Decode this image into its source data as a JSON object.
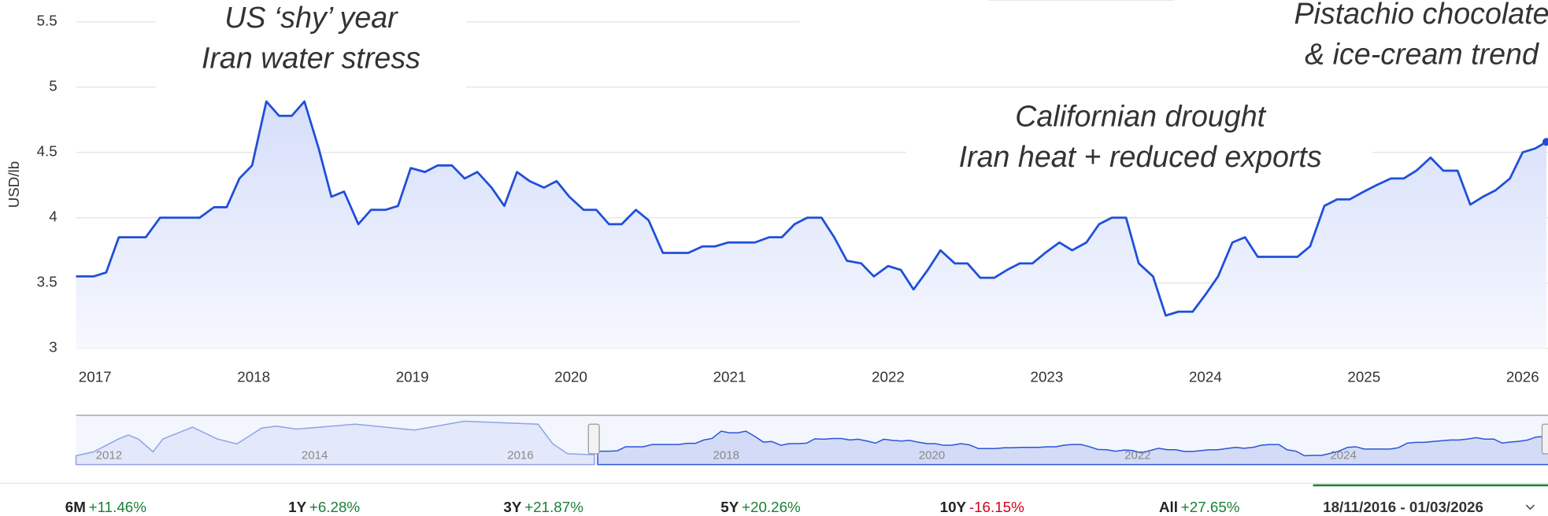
{
  "chart_data": {
    "type": "line",
    "y_label": "USD/lb",
    "color": "#1f4fd8",
    "x": [
      2016.88,
      2016.99,
      2017.07,
      2017.15,
      2017.32,
      2017.41,
      2017.66,
      2017.75,
      2017.83,
      2017.91,
      2017.99,
      2018.08,
      2018.16,
      2018.24,
      2018.32,
      2018.41,
      2018.49,
      2018.57,
      2018.66,
      2018.74,
      2018.83,
      2018.91,
      2018.99,
      2019.08,
      2019.16,
      2019.25,
      2019.33,
      2019.41,
      2019.5,
      2019.58,
      2019.66,
      2019.74,
      2019.83,
      2019.91,
      2019.99,
      2020.08,
      2020.16,
      2020.24,
      2020.32,
      2020.41,
      2020.49,
      2020.58,
      2020.74,
      2020.83,
      2020.91,
      2020.99,
      2021.16,
      2021.25,
      2021.33,
      2021.41,
      2021.49,
      2021.58,
      2021.66,
      2021.74,
      2021.83,
      2021.91,
      2022.0,
      2022.08,
      2022.16,
      2022.25,
      2022.33,
      2022.42,
      2022.5,
      2022.58,
      2022.67,
      2022.75,
      2022.83,
      2022.91,
      2022.99,
      2023.08,
      2023.16,
      2023.25,
      2023.33,
      2023.41,
      2023.5,
      2023.58,
      2023.67,
      2023.75,
      2023.83,
      2023.92,
      2024.0,
      2024.08,
      2024.17,
      2024.25,
      2024.33,
      2024.58,
      2024.66,
      2024.75,
      2024.83,
      2024.91,
      2025.0,
      2025.08,
      2025.17,
      2025.25,
      2025.33,
      2025.42,
      2025.5,
      2025.59,
      2025.67,
      2025.75,
      2025.83,
      2025.92,
      2026.0,
      2026.08,
      2026.15
    ],
    "values": [
      3.55,
      3.55,
      3.58,
      3.85,
      3.85,
      4.0,
      4.0,
      4.08,
      4.08,
      4.3,
      4.4,
      4.89,
      4.78,
      4.78,
      4.89,
      4.53,
      4.16,
      4.2,
      3.95,
      4.06,
      4.06,
      4.09,
      4.38,
      4.35,
      4.4,
      4.4,
      4.3,
      4.35,
      4.23,
      4.09,
      4.35,
      4.28,
      4.23,
      4.28,
      4.16,
      4.06,
      4.06,
      3.95,
      3.95,
      4.06,
      3.98,
      3.73,
      3.73,
      3.78,
      3.78,
      3.81,
      3.81,
      3.85,
      3.85,
      3.95,
      4.0,
      4.0,
      3.85,
      3.67,
      3.65,
      3.55,
      3.63,
      3.6,
      3.45,
      3.6,
      3.75,
      3.65,
      3.65,
      3.54,
      3.54,
      3.6,
      3.65,
      3.65,
      3.73,
      3.81,
      3.75,
      3.81,
      3.95,
      4.0,
      4.0,
      3.65,
      3.55,
      3.25,
      3.28,
      3.28,
      3.41,
      3.55,
      3.81,
      3.85,
      3.7,
      3.7,
      3.78,
      4.09,
      4.14,
      4.14,
      4.2,
      4.25,
      4.3,
      4.3,
      4.36,
      4.46,
      4.36,
      4.36,
      4.1,
      4.16,
      4.21,
      4.3,
      4.5,
      4.53,
      4.58
    ],
    "xlim": [
      2016.88,
      2026.16
    ],
    "xticks": [
      2017,
      2018,
      2019,
      2020,
      2021,
      2022,
      2023,
      2024,
      2025,
      2026
    ],
    "ylim": [
      3,
      5.5
    ],
    "yticks": [
      3,
      3.5,
      4,
      4.5,
      5,
      5.5
    ],
    "grid": true,
    "annotations": [
      {
        "lines": [
          "US ‘shy’ year",
          "Iran water stress"
        ]
      },
      {
        "lines": [
          "Californian drought",
          "Iran heat + reduced exports"
        ]
      },
      {
        "lines": [
          "Pistachio chocolate",
          "& ice-cream trend"
        ]
      }
    ]
  },
  "navigator": {
    "labels": [
      "2012",
      "2014",
      "2016",
      "2018",
      "2020",
      "2022",
      "2024"
    ]
  },
  "performance": [
    {
      "period": "6M",
      "change": "+11.46%",
      "color": "#188038"
    },
    {
      "period": "1Y",
      "change": "+6.28%",
      "color": "#188038"
    },
    {
      "period": "3Y",
      "change": "+21.87%",
      "color": "#188038"
    },
    {
      "period": "5Y",
      "change": "+20.26%",
      "color": "#188038"
    },
    {
      "period": "10Y",
      "change": "-16.15%",
      "color": "#d0021b"
    },
    {
      "period": "All",
      "change": "+27.65%",
      "color": "#188038"
    }
  ],
  "date_range": "18/11/2016 - 01/03/2026"
}
